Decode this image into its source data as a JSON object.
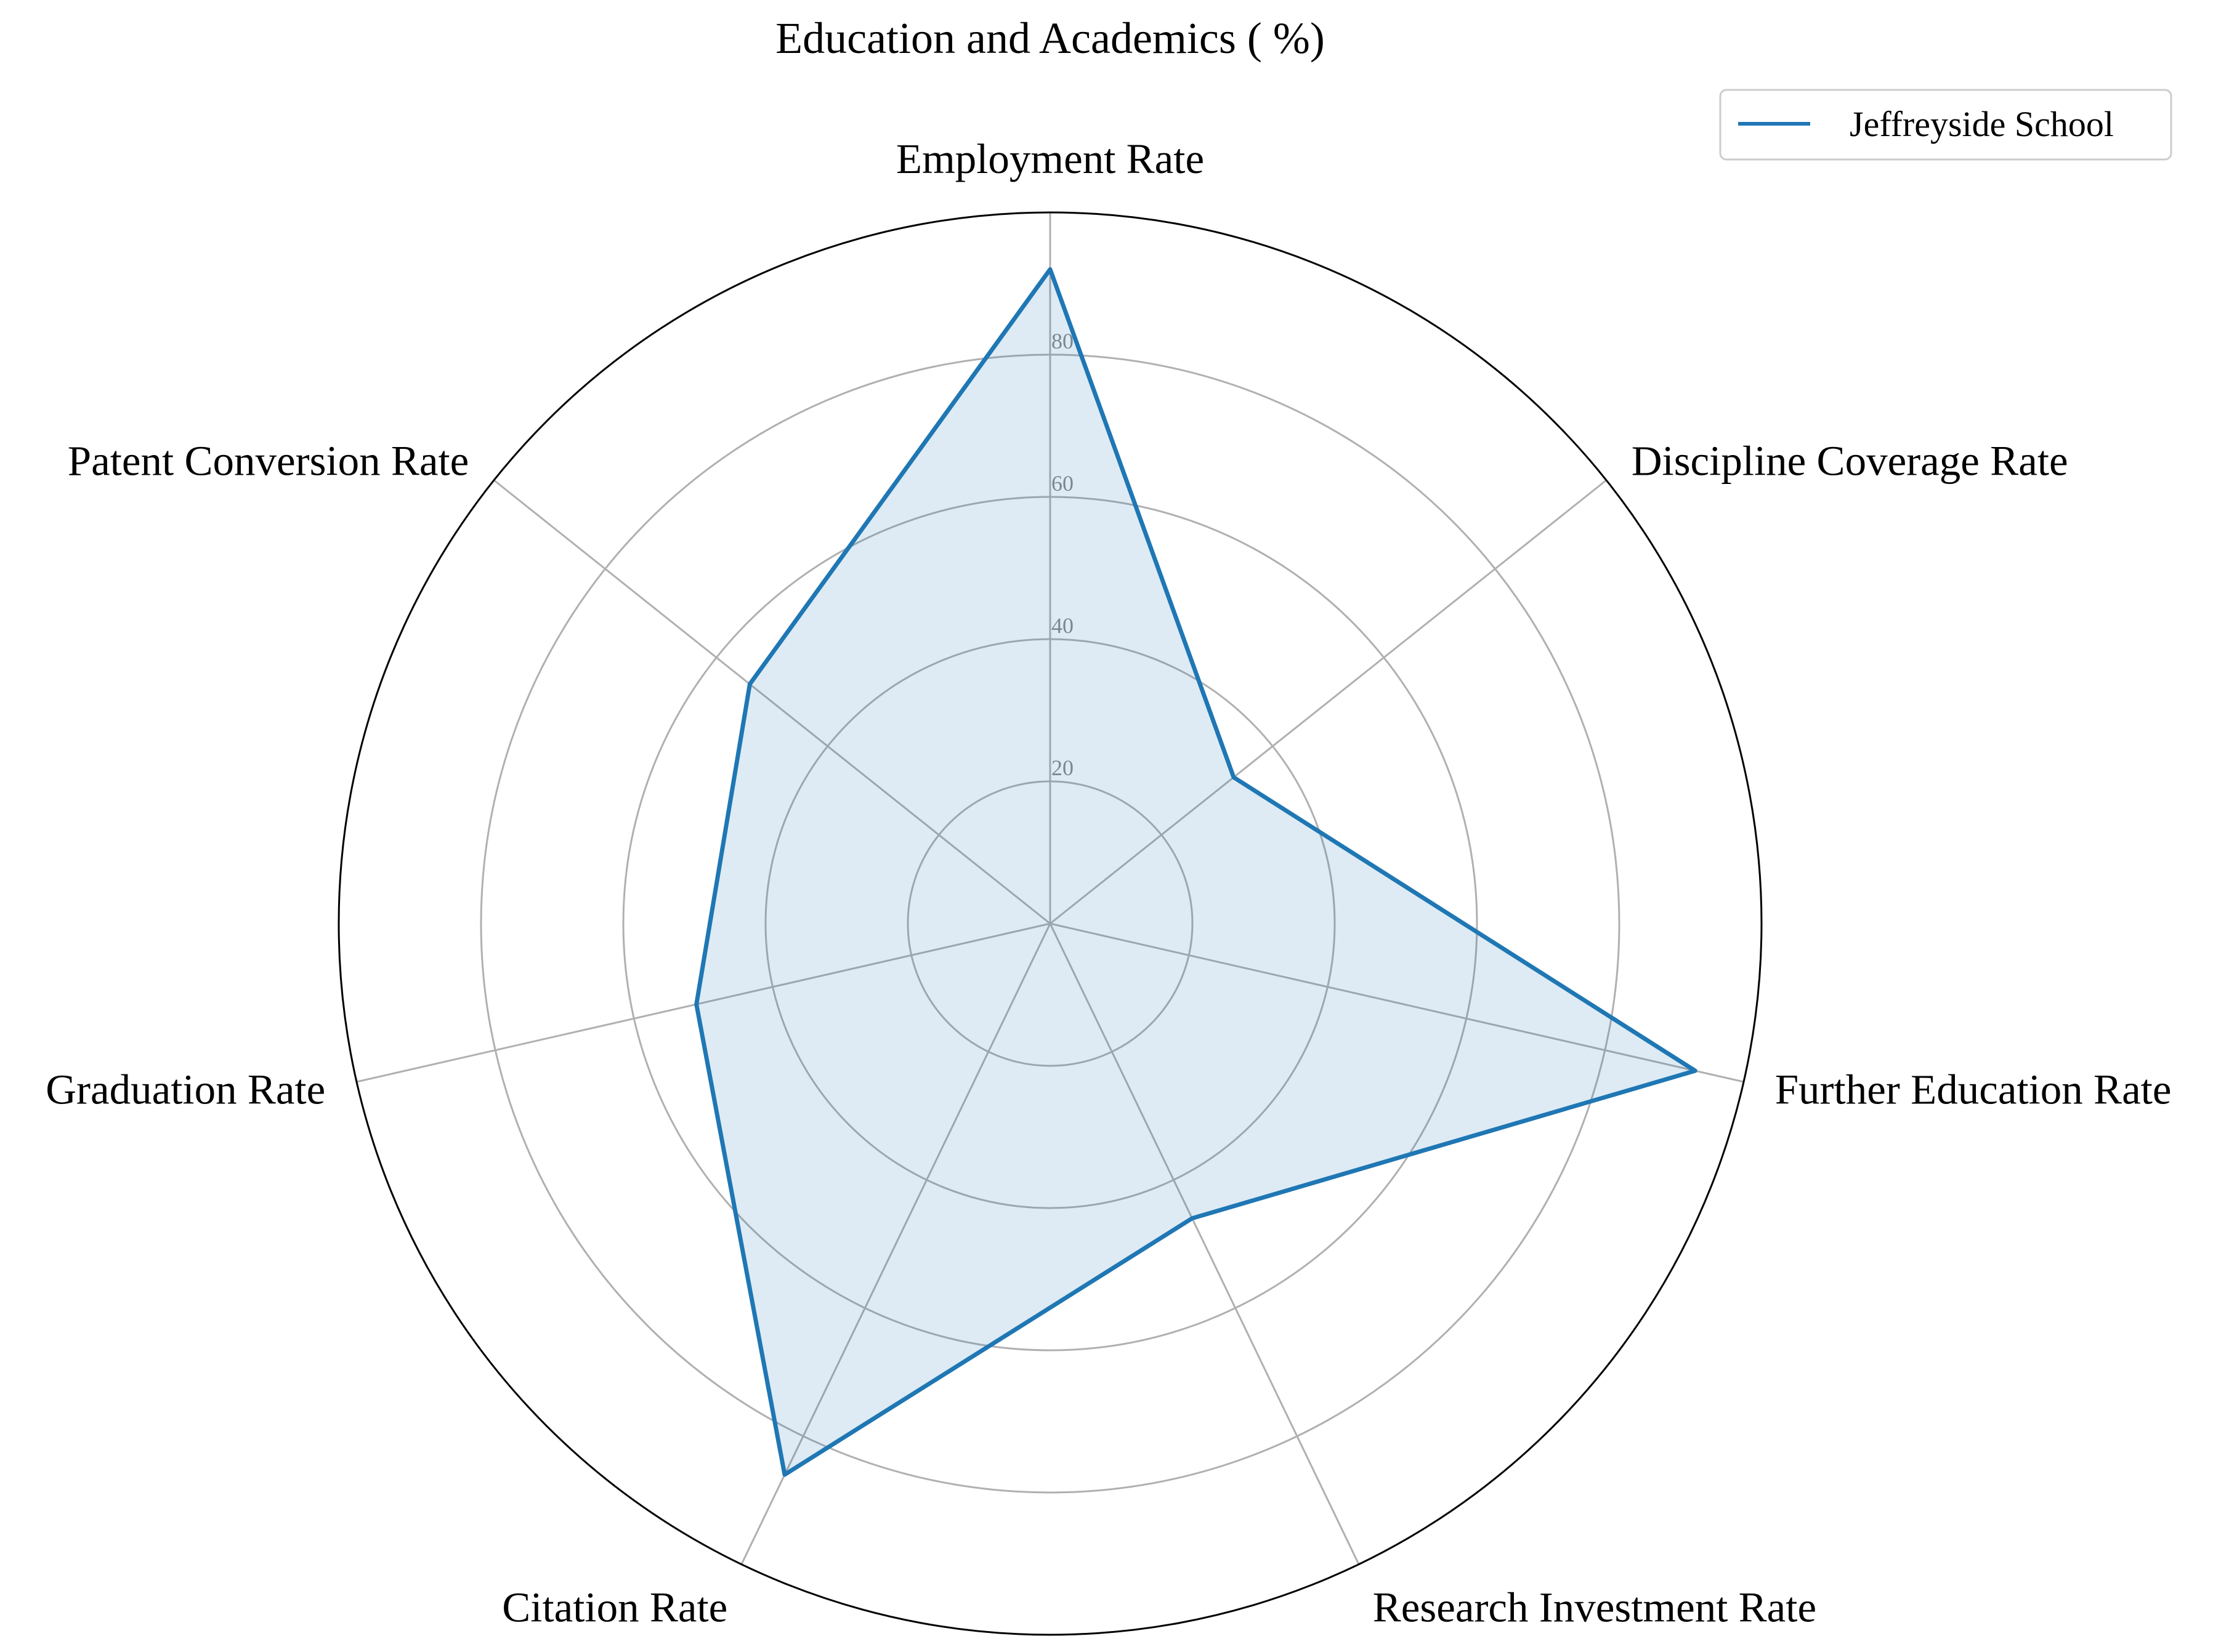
{
  "chart_data": {
    "type": "radar",
    "title": "Education and Academics ( %)",
    "axes": [
      "Employment Rate",
      "Discipline Coverage Rate",
      "Further Education Rate",
      "Research Investment Rate",
      "Citation Rate",
      "Graduation Rate",
      "Patent Conversion Rate"
    ],
    "rmax": 100,
    "radial_ticks": [
      20,
      40,
      60,
      80
    ],
    "radial_tick_labels": [
      "20",
      "40",
      "60",
      "80"
    ],
    "grid": true,
    "series": [
      {
        "name": "Jeffreyside School",
        "values": [
          92,
          33,
          93,
          46,
          86,
          51,
          54
        ],
        "color": "#1f77b4",
        "fill_color": "#1f77b4",
        "fill_opacity": 0.15
      }
    ],
    "legend_position": "top-right"
  }
}
